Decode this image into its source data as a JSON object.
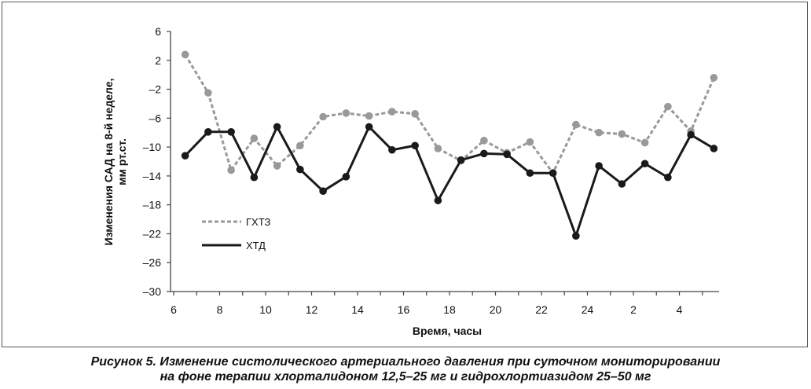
{
  "caption": {
    "line1": "Рисунок 5. Изменение систолического артериального давления при суточном мониторировании",
    "line2": "на фоне терапии хлорталидоном 12,5–25 мг и гидрохлортиазидом 25–50 мг"
  },
  "chart_data": {
    "type": "line",
    "title": "",
    "xlabel": "Время, часы",
    "ylabel_line1": "Изменения САД на 8-й  неделе,",
    "ylabel_line2": "мм рт.ст.",
    "ylim": [
      -30,
      6
    ],
    "y_ticks": [
      "6",
      "2",
      "–2",
      "–6",
      "–10",
      "–14",
      "–18",
      "–22",
      "–26",
      "–30"
    ],
    "y_tick_values": [
      6,
      2,
      -2,
      -6,
      -10,
      -14,
      -18,
      -22,
      -26,
      -30
    ],
    "x_tick_labels": [
      "6",
      "8",
      "10",
      "12",
      "14",
      "16",
      "18",
      "20",
      "22",
      "24",
      "2",
      "4"
    ],
    "x_range_hours": [
      6,
      29
    ],
    "x": [
      6.5,
      7.5,
      8.5,
      9.5,
      10.5,
      11.5,
      12.5,
      13.5,
      14.5,
      15.5,
      16.5,
      17.5,
      18.5,
      19.5,
      20.5,
      21.5,
      22.5,
      23.5,
      24.5,
      25.5,
      26.5,
      27.5,
      28.5,
      29.5
    ],
    "grid": false,
    "legend_position": "bottom-left",
    "series": [
      {
        "name": "ГХТЗ",
        "style": "dashed",
        "color": "#999999",
        "values": [
          2.8,
          -2.5,
          -13.2,
          -8.8,
          -12.6,
          -9.8,
          -5.8,
          -5.3,
          -5.7,
          -5.1,
          -5.4,
          -10.2,
          -11.9,
          -9.1,
          -10.8,
          -9.3,
          -13.6,
          -6.9,
          -8.0,
          -8.2,
          -9.4,
          -4.4,
          -7.8,
          -0.4
        ]
      },
      {
        "name": "ХТД",
        "style": "solid",
        "color": "#1a1a1a",
        "values": [
          -11.2,
          -7.9,
          -7.9,
          -14.2,
          -7.2,
          -13.1,
          -16.1,
          -14.1,
          -7.2,
          -10.4,
          -9.8,
          -17.4,
          -11.8,
          -10.9,
          -11.0,
          -13.6,
          -13.6,
          -22.3,
          -12.6,
          -15.1,
          -12.3,
          -14.2,
          -8.3,
          -10.2
        ]
      }
    ]
  }
}
